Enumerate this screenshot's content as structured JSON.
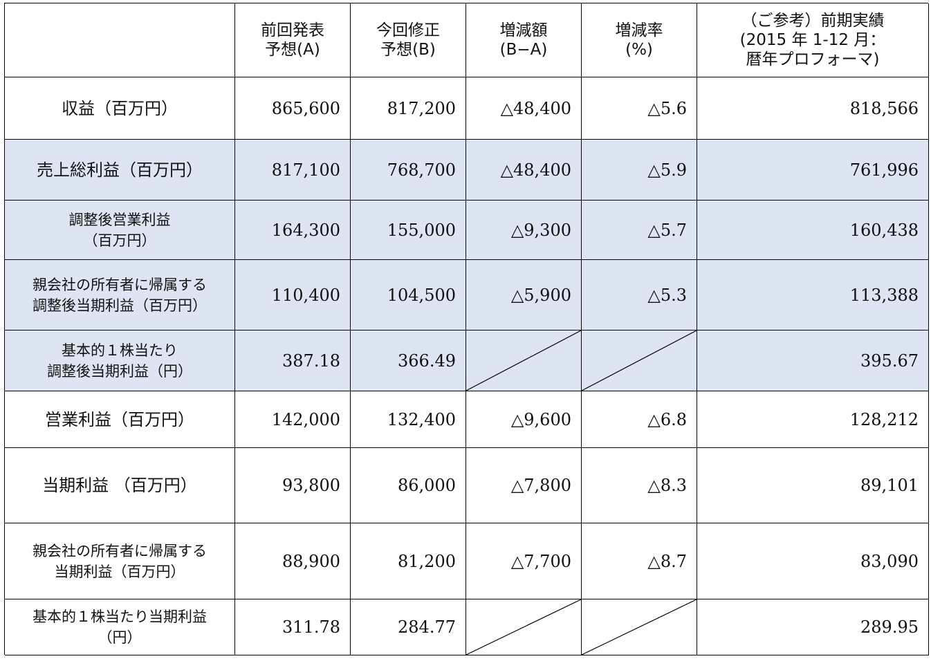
{
  "header": {
    "col1": "",
    "col2": "前回発表\n予想(A)",
    "col3": "今回修正\n予想(B)",
    "col4": "増減額\n(B−A)",
    "col5": "増減率\n(%)",
    "col6": "（ご参考）前期実績\n(2015 年 1-12 月：\n暦年プロフォーマ)"
  },
  "rows": [
    {
      "label": "収益（百万円）",
      "a": "865,600",
      "b": "817,200",
      "diff": "△48,400",
      "rate": "△5.6",
      "prev": "818,566"
    },
    {
      "label": "売上総利益（百万円）",
      "a": "817,100",
      "b": "768,700",
      "diff": "△48,400",
      "rate": "△5.9",
      "prev": "761,996"
    },
    {
      "label": "調整後営業利益\n（百万円）",
      "a": "164,300",
      "b": "155,000",
      "diff": "△9,300",
      "rate": "△5.7",
      "prev": "160,438"
    },
    {
      "label": "親会社の所有者に帰属する\n調整後当期利益（百万円）",
      "a": "110,400",
      "b": "104,500",
      "diff": "△5,900",
      "rate": "△5.3",
      "prev": "113,388"
    },
    {
      "label": "基本的１株当たり\n調整後当期利益（円）",
      "a": "387.18",
      "b": "366.49",
      "diff": "",
      "rate": "",
      "prev": "395.67"
    },
    {
      "label": "営業利益（百万円）",
      "a": "142,000",
      "b": "132,400",
      "diff": "△9,600",
      "rate": "△6.8",
      "prev": "128,212"
    },
    {
      "label": "当期利益 （百万円）",
      "a": "93,800",
      "b": "86,000",
      "diff": "△7,800",
      "rate": "△8.3",
      "prev": "89,101"
    },
    {
      "label": "親会社の所有者に帰属する\n当期利益（百万円）",
      "a": "88,900",
      "b": "81,200",
      "diff": "△7,700",
      "rate": "△8.7",
      "prev": "83,090"
    },
    {
      "label": "基本的１株当たり当期利益\n（円）",
      "a": "311.78",
      "b": "284.77",
      "diff": "",
      "rate": "",
      "prev": "289.95"
    }
  ],
  "style": {
    "shaded_rows": [
      1,
      2,
      3,
      4
    ],
    "shade_color": "#dce5f1"
  }
}
